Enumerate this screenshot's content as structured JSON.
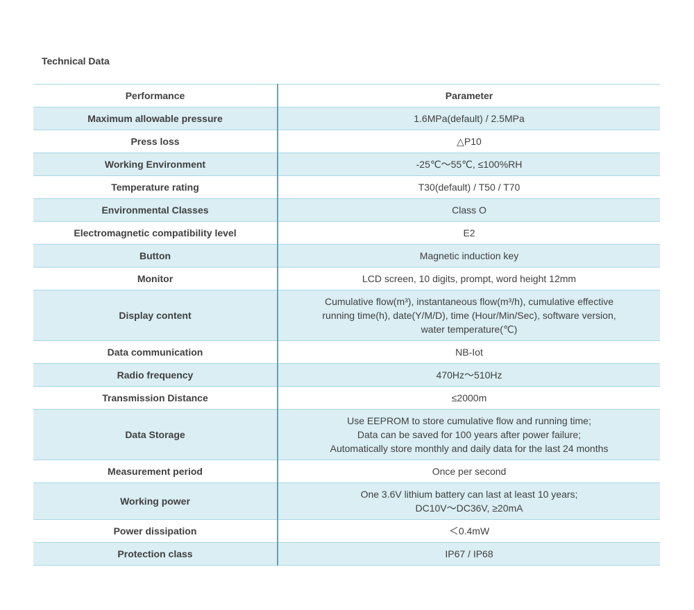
{
  "page": {
    "title": "Technical Data"
  },
  "table": {
    "headers": [
      "Performance",
      "Parameter"
    ],
    "rows": [
      {
        "performance": "Maximum allowable pressure",
        "parameter_lines": [
          "1.6MPa(default) / 2.5MPa"
        ]
      },
      {
        "performance": "Press loss",
        "parameter_lines": [
          "△P10"
        ]
      },
      {
        "performance": "Working Environment",
        "parameter_lines": [
          "-25℃～55℃, ≤100%RH"
        ]
      },
      {
        "performance": "Temperature rating",
        "parameter_lines": [
          "T30(default) / T50 / T70"
        ]
      },
      {
        "performance": "Environmental Classes",
        "parameter_lines": [
          "Class O"
        ]
      },
      {
        "performance": "Electromagnetic compatibility level",
        "parameter_lines": [
          "E2"
        ]
      },
      {
        "performance": "Button",
        "parameter_lines": [
          "Magnetic induction key"
        ]
      },
      {
        "performance": "Monitor",
        "parameter_lines": [
          "LCD screen, 10 digits, prompt, word height 12mm"
        ]
      },
      {
        "performance": "Display content",
        "parameter_lines": [
          "Cumulative flow(m³), instantaneous flow(m³/h), cumulative effective",
          "running time(h), date(Y/M/D), time (Hour/Min/Sec), software version,",
          "water temperature(℃)"
        ]
      },
      {
        "performance": "Data communication",
        "parameter_lines": [
          "NB-Iot"
        ]
      },
      {
        "performance": "Radio frequency",
        "parameter_lines": [
          "470Hz～510Hz"
        ]
      },
      {
        "performance": "Transmission Distance",
        "parameter_lines": [
          "≤2000m"
        ]
      },
      {
        "performance": "Data Storage",
        "parameter_lines": [
          "Use EEPROM to store cumulative flow and running time;",
          "Data can be saved for 100 years after power failure;",
          "Automatically store monthly and daily data for the last 24 months"
        ]
      },
      {
        "performance": "Measurement period",
        "parameter_lines": [
          "Once per second"
        ]
      },
      {
        "performance": "Working power",
        "parameter_lines": [
          "One 3.6V lithium battery can last at least 10 years;",
          "DC10V～DC36V, ≥20mA"
        ]
      },
      {
        "performance": "Power dissipation",
        "parameter_lines": [
          "＜0.4mW"
        ]
      },
      {
        "performance": "Protection class",
        "parameter_lines": [
          "IP67 / IP68"
        ]
      }
    ],
    "colors": {
      "row_fill": "#daeef3",
      "row_border": "#a9d8e6",
      "column_divider": "#4bacc6",
      "text": "#404040"
    }
  }
}
